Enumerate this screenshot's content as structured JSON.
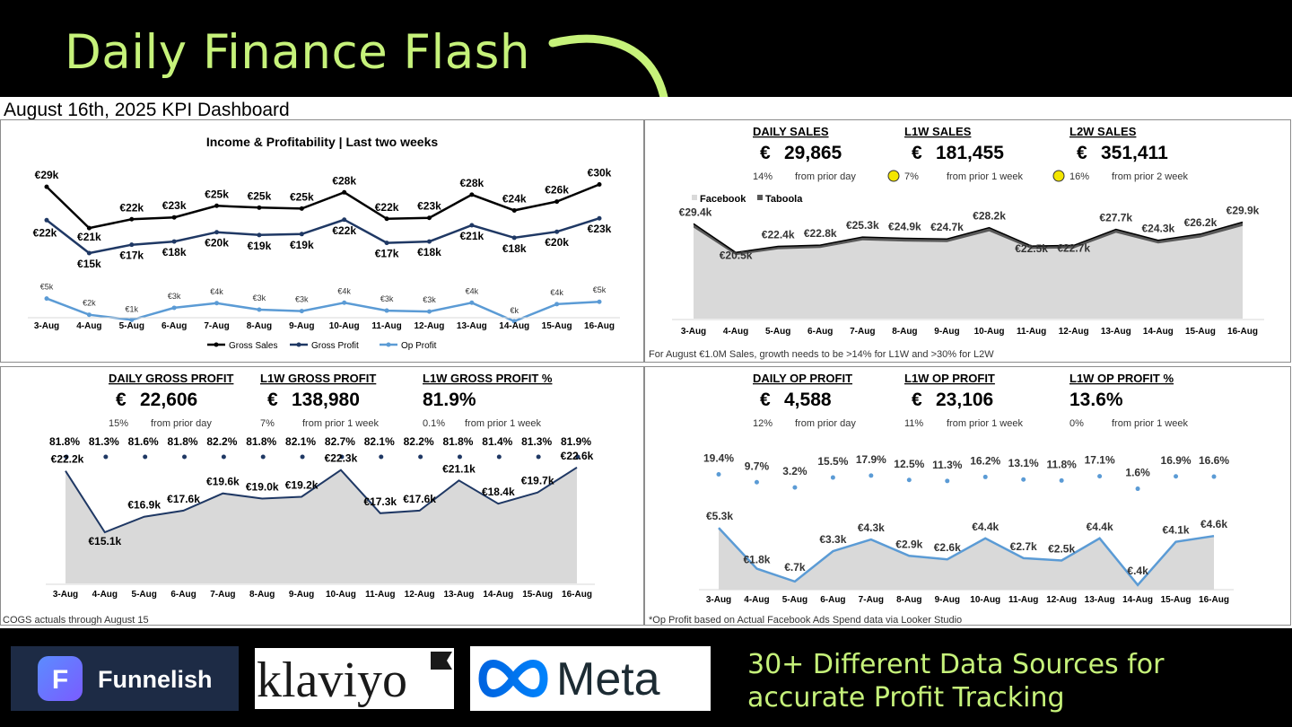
{
  "headline": "Daily Finance Flash",
  "dashboard_title": "August 16th, 2025 KPI Dashboard",
  "colors": {
    "accent_green": "#c6f27a",
    "navy": "#1f3864",
    "light_blue": "#5b9bd5",
    "black": "#000000",
    "area_gray": "#d9d9d9",
    "dark_gray": "#595959",
    "amber_dot": "#f3e600"
  },
  "icons": [
    "curved-arrow-icon",
    "funnelish-f-icon",
    "klaviyo-flag-icon",
    "meta-infinity-icon"
  ],
  "dates": [
    "3-Aug",
    "4-Aug",
    "5-Aug",
    "6-Aug",
    "7-Aug",
    "8-Aug",
    "9-Aug",
    "10-Aug",
    "11-Aug",
    "12-Aug",
    "13-Aug",
    "14-Aug",
    "15-Aug",
    "16-Aug"
  ],
  "income_panel": {
    "title": "Income & Profitability | Last two weeks",
    "legend": [
      "Gross Sales",
      "Gross Profit",
      "Op Profit"
    ],
    "chart_data": {
      "type": "line",
      "title": "Income & Profitability | Last two weeks",
      "series": [
        {
          "name": "Gross Sales",
          "color": "#000000",
          "values": [
            29.4,
            20.5,
            22.4,
            22.8,
            25.3,
            24.9,
            24.7,
            28.2,
            22.5,
            22.7,
            27.7,
            24.3,
            26.2,
            29.9
          ],
          "labels": [
            "€29k",
            "€21k",
            "€22k",
            "€23k",
            "€25k",
            "€25k",
            "€25k",
            "€28k",
            "€22k",
            "€23k",
            "€28k",
            "€24k",
            "€26k",
            "€30k"
          ]
        },
        {
          "name": "Gross Profit",
          "color": "#1f3864",
          "values": [
            22.2,
            15.1,
            16.9,
            17.6,
            19.6,
            19.0,
            19.2,
            22.3,
            17.3,
            17.6,
            21.1,
            18.4,
            19.7,
            22.6
          ],
          "labels": [
            "€22k",
            "€15k",
            "€17k",
            "€18k",
            "€20k",
            "€19k",
            "€19k",
            "€22k",
            "€17k",
            "€18k",
            "€21k",
            "€18k",
            "€20k",
            "€23k"
          ]
        },
        {
          "name": "Op Profit",
          "color": "#5b9bd5",
          "values": [
            5.3,
            1.8,
            0.7,
            3.3,
            4.3,
            2.9,
            2.6,
            4.4,
            2.7,
            2.5,
            4.4,
            0.4,
            4.1,
            4.6
          ],
          "labels": [
            "€5k",
            "€2k",
            "€1k",
            "€3k",
            "€4k",
            "€3k",
            "€3k",
            "€4k",
            "€3k",
            "€3k",
            "€4k",
            "€k",
            "€4k",
            "€5k"
          ]
        }
      ]
    }
  },
  "sales_panel": {
    "kpis": [
      {
        "heading": "DAILY SALES",
        "currency": "€",
        "value": "29,865",
        "delta": "14%",
        "delta_note": "from prior day"
      },
      {
        "heading": "L1W SALES",
        "currency": "€",
        "value": "181,455",
        "delta": "7%",
        "delta_note": "from prior 1 week",
        "status_color": "#f3e600"
      },
      {
        "heading": "L2W SALES",
        "currency": "€",
        "value": "351,411",
        "delta": "16%",
        "delta_note": "from prior 2 week",
        "status_color": "#f3e600"
      }
    ],
    "legend": [
      "Facebook",
      "Taboola"
    ],
    "footnote": "For August €1.0M Sales, growth needs to be >14% for L1W and >30% for L2W",
    "chart_data": {
      "type": "area",
      "stacked": true,
      "series": [
        {
          "name": "Facebook",
          "color": "#d9d9d9"
        },
        {
          "name": "Taboola",
          "color": "#595959"
        }
      ],
      "totals": [
        29.4,
        20.5,
        22.4,
        22.8,
        25.3,
        24.9,
        24.7,
        28.2,
        22.5,
        22.7,
        27.7,
        24.3,
        26.2,
        29.9
      ],
      "labels": [
        "€29.4k",
        "€20.5k",
        "€22.4k",
        "€22.8k",
        "€25.3k",
        "€24.9k",
        "€24.7k",
        "€28.2k",
        "€22.5k",
        "€22.7k",
        "€27.7k",
        "€24.3k",
        "€26.2k",
        "€29.9k"
      ],
      "taboola_share": 0.04
    }
  },
  "gross_panel": {
    "kpis": [
      {
        "heading": "DAILY GROSS PROFIT",
        "currency": "€",
        "value": "22,606",
        "delta": "15%",
        "delta_note": "from prior day"
      },
      {
        "heading": "L1W GROSS PROFIT",
        "currency": "€",
        "value": "138,980",
        "delta": "7%",
        "delta_note": "from prior 1 week"
      },
      {
        "heading": "L1W GROSS PROFIT %",
        "currency": "",
        "value": "81.9%",
        "delta": "0.1%",
        "delta_note": "from prior 1 week"
      }
    ],
    "footnote": "COGS actuals through August 15",
    "chart_data": {
      "type": "area",
      "values": [
        22.2,
        15.1,
        16.9,
        17.6,
        19.6,
        19.0,
        19.2,
        22.3,
        17.3,
        17.6,
        21.1,
        18.4,
        19.7,
        22.6
      ],
      "labels": [
        "€22.2k",
        "€15.1k",
        "€16.9k",
        "€17.6k",
        "€19.6k",
        "€19.0k",
        "€19.2k",
        "€22.3k",
        "€17.3k",
        "€17.6k",
        "€21.1k",
        "€18.4k",
        "€19.7k",
        "€22.6k"
      ],
      "pct_values": [
        81.8,
        81.3,
        81.6,
        81.8,
        82.2,
        81.8,
        82.1,
        82.7,
        82.1,
        82.2,
        81.8,
        81.4,
        81.3,
        81.9
      ],
      "pct_labels": [
        "81.8%",
        "81.3%",
        "81.6%",
        "81.8%",
        "82.2%",
        "81.8%",
        "82.1%",
        "82.7%",
        "82.1%",
        "82.2%",
        "81.8%",
        "81.4%",
        "81.3%",
        "81.9%"
      ]
    }
  },
  "op_panel": {
    "kpis": [
      {
        "heading": "DAILY OP PROFIT",
        "currency": "€",
        "value": "4,588",
        "delta": "12%",
        "delta_note": "from prior day"
      },
      {
        "heading": "L1W OP PROFIT",
        "currency": "€",
        "value": "23,106",
        "delta": "11%",
        "delta_note": "from prior 1 week"
      },
      {
        "heading": "L1W OP PROFIT %",
        "currency": "",
        "value": "13.6%",
        "delta": "0%",
        "delta_note": "from prior 1 week"
      }
    ],
    "footnote": "*Op Profit based on Actual Facebook Ads Spend data via Looker Studio",
    "chart_data": {
      "type": "area",
      "values": [
        5.3,
        1.8,
        0.7,
        3.3,
        4.3,
        2.9,
        2.6,
        4.4,
        2.7,
        2.5,
        4.4,
        0.4,
        4.1,
        4.6
      ],
      "labels": [
        "€5.3k",
        "€1.8k",
        "€.7k",
        "€3.3k",
        "€4.3k",
        "€2.9k",
        "€2.6k",
        "€4.4k",
        "€2.7k",
        "€2.5k",
        "€4.4k",
        "€.4k",
        "€4.1k",
        "€4.6k"
      ],
      "pct_values": [
        19.4,
        9.7,
        3.2,
        15.5,
        17.9,
        12.5,
        11.3,
        16.2,
        13.1,
        11.8,
        17.1,
        1.6,
        16.9,
        16.6
      ],
      "pct_labels": [
        "19.4%",
        "9.7%",
        "3.2%",
        "15.5%",
        "17.9%",
        "12.5%",
        "11.3%",
        "16.2%",
        "13.1%",
        "11.8%",
        "17.1%",
        "1.6%",
        "16.9%",
        "16.6%"
      ]
    }
  },
  "logos": {
    "funnelish": "Funnelish",
    "funnelish_icon_letter": "F",
    "klaviyo": "klaviyo",
    "meta": "Meta"
  },
  "tagline": {
    "line1": "30+ Different Data Sources for",
    "line2": "accurate Profit Tracking"
  }
}
